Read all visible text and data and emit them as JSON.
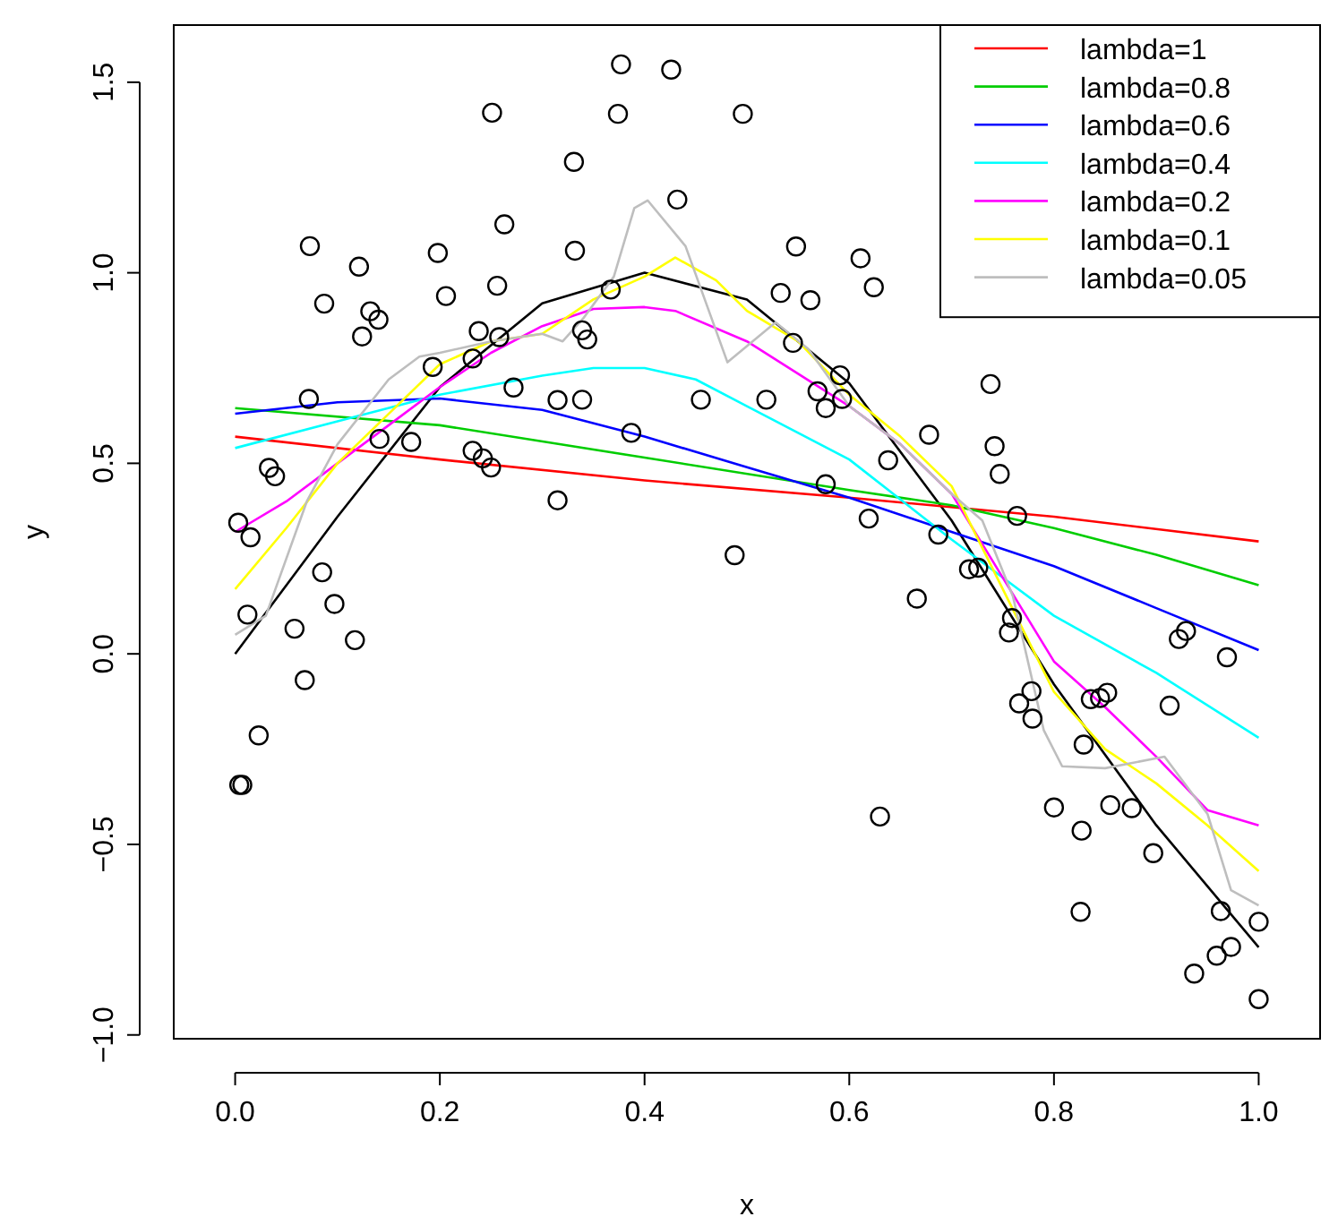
{
  "chart_data": {
    "type": "scatter",
    "xlabel": "x",
    "ylabel": "y",
    "xlim": [
      -0.06,
      1.06
    ],
    "ylim": [
      -1.01,
      1.65
    ],
    "xticks": [
      {
        "value": 0,
        "label": "0.0"
      },
      0.2,
      0.4,
      0.6,
      0.8,
      {
        "value": 1,
        "label": "1.0"
      }
    ],
    "yticks": [
      {
        "value": -1,
        "label": "−1.0"
      },
      {
        "value": -0.5,
        "label": "−0.5"
      },
      {
        "value": 0,
        "label": "0.0"
      },
      0.5,
      {
        "value": 1,
        "label": "1.0"
      },
      1.5
    ],
    "grid": false,
    "legend": "top right",
    "series": [
      {
        "marker": "circle",
        "color": "#000000",
        "x": [
          0.251,
          0.263,
          0.073,
          0.121,
          0.198,
          0.087,
          0.256,
          0.206,
          0.132,
          0.14,
          0.124,
          0.238,
          0.258,
          0.232,
          0.193,
          0.272,
          0.315,
          0.072,
          0.141,
          0.172,
          0.232,
          0.242,
          0.25,
          0.033,
          0.039,
          0.315,
          0.003,
          0.015,
          0.085,
          0.097,
          0.012,
          0.058,
          0.117,
          0.068,
          0.023,
          0.004,
          0.007,
          0.377,
          0.426,
          0.374,
          0.496,
          0.331,
          0.432,
          0.332,
          0.548,
          0.611,
          0.367,
          0.533,
          0.562,
          0.624,
          0.339,
          0.344,
          0.545,
          0.591,
          0.569,
          0.593,
          0.577,
          0.339,
          0.455,
          0.519,
          0.387,
          0.638,
          0.678,
          0.577,
          0.619,
          0.488,
          0.666,
          0.63,
          0.742,
          0.747,
          0.764,
          0.738,
          0.687,
          0.717,
          0.726,
          0.759,
          0.756,
          0.922,
          0.929,
          0.969,
          0.778,
          0.766,
          0.779,
          0.836,
          0.845,
          0.852,
          0.913,
          0.829,
          0.8,
          0.855,
          0.876,
          0.827,
          0.897,
          0.826,
          0.963,
          1.0,
          0.973,
          0.959,
          0.937,
          1.0
        ],
        "values": [
          1.42,
          1.127,
          1.07,
          1.016,
          1.052,
          0.919,
          0.966,
          0.939,
          0.899,
          0.877,
          0.833,
          0.847,
          0.831,
          0.775,
          0.753,
          0.699,
          0.666,
          0.669,
          0.564,
          0.556,
          0.533,
          0.513,
          0.489,
          0.488,
          0.466,
          0.403,
          0.344,
          0.306,
          0.214,
          0.131,
          0.103,
          0.066,
          0.036,
          -0.069,
          -0.214,
          -0.344,
          -0.344,
          1.547,
          1.533,
          1.417,
          1.417,
          1.291,
          1.192,
          1.058,
          1.069,
          1.038,
          0.956,
          0.947,
          0.928,
          0.962,
          0.849,
          0.825,
          0.816,
          0.731,
          0.689,
          0.669,
          0.645,
          0.667,
          0.667,
          0.667,
          0.58,
          0.508,
          0.575,
          0.445,
          0.355,
          0.259,
          0.145,
          -0.427,
          0.545,
          0.472,
          0.362,
          0.708,
          0.313,
          0.222,
          0.226,
          0.094,
          0.056,
          0.039,
          0.06,
          -0.009,
          -0.098,
          -0.13,
          -0.17,
          -0.119,
          -0.116,
          -0.102,
          -0.136,
          -0.238,
          -0.403,
          -0.397,
          -0.405,
          -0.464,
          -0.523,
          -0.677,
          -0.675,
          -0.703,
          -0.769,
          -0.792,
          -0.839,
          -0.906
        ]
      },
      {
        "type": "line",
        "marker": "none",
        "color": "#000000",
        "x": [
          0,
          0.1,
          0.2,
          0.3,
          0.4,
          0.5,
          0.6,
          0.7,
          0.8,
          0.9,
          1.0
        ],
        "values": [
          0,
          0.36,
          0.7,
          0.92,
          1.0,
          0.93,
          0.71,
          0.35,
          -0.08,
          -0.45,
          -0.77
        ]
      },
      {
        "type": "line",
        "marker": "none",
        "name": "lambda=1",
        "color": "#ff0000",
        "x": [
          0,
          0.2,
          0.4,
          0.6,
          0.8,
          1.0
        ],
        "values": [
          0.57,
          0.51,
          0.455,
          0.41,
          0.36,
          0.295
        ]
      },
      {
        "type": "line",
        "marker": "none",
        "name": "lambda=0.8",
        "color": "#00cd00",
        "x": [
          0,
          0.2,
          0.4,
          0.6,
          0.7,
          0.8,
          0.9,
          1.0
        ],
        "values": [
          0.645,
          0.6,
          0.515,
          0.43,
          0.39,
          0.33,
          0.26,
          0.18
        ]
      },
      {
        "type": "line",
        "marker": "none",
        "name": "lambda=0.6",
        "color": "#0000ff",
        "x": [
          0,
          0.1,
          0.2,
          0.3,
          0.4,
          0.5,
          0.6,
          0.7,
          0.8,
          0.9,
          1.0
        ],
        "values": [
          0.63,
          0.66,
          0.67,
          0.64,
          0.57,
          0.49,
          0.41,
          0.32,
          0.23,
          0.12,
          0.01
        ]
      },
      {
        "type": "line",
        "marker": "none",
        "name": "lambda=0.4",
        "color": "#00ffff",
        "x": [
          0,
          0.1,
          0.2,
          0.3,
          0.35,
          0.4,
          0.45,
          0.5,
          0.6,
          0.7,
          0.75,
          0.8,
          0.9,
          1.0
        ],
        "values": [
          0.54,
          0.61,
          0.68,
          0.73,
          0.75,
          0.75,
          0.72,
          0.65,
          0.51,
          0.3,
          0.2,
          0.1,
          -0.05,
          -0.22
        ]
      },
      {
        "type": "line",
        "marker": "none",
        "name": "lambda=0.2",
        "color": "#ff00ff",
        "x": [
          0,
          0.05,
          0.1,
          0.15,
          0.2,
          0.25,
          0.3,
          0.35,
          0.4,
          0.43,
          0.5,
          0.6,
          0.65,
          0.7,
          0.75,
          0.8,
          0.85,
          0.9,
          0.95,
          1.0
        ],
        "values": [
          0.32,
          0.4,
          0.5,
          0.6,
          0.7,
          0.79,
          0.86,
          0.905,
          0.91,
          0.9,
          0.82,
          0.65,
          0.55,
          0.42,
          0.2,
          -0.02,
          -0.14,
          -0.27,
          -0.41,
          -0.45
        ]
      },
      {
        "type": "line",
        "marker": "none",
        "name": "lambda=0.1",
        "color": "#ffff00",
        "x": [
          0,
          0.05,
          0.1,
          0.15,
          0.2,
          0.25,
          0.3,
          0.35,
          0.4,
          0.43,
          0.47,
          0.5,
          0.55,
          0.6,
          0.65,
          0.7,
          0.75,
          0.8,
          0.85,
          0.9,
          0.95,
          1.0
        ],
        "values": [
          0.17,
          0.33,
          0.5,
          0.63,
          0.76,
          0.82,
          0.84,
          0.93,
          0.99,
          1.04,
          0.98,
          0.9,
          0.82,
          0.68,
          0.57,
          0.44,
          0.17,
          -0.1,
          -0.25,
          -0.34,
          -0.45,
          -0.57
        ]
      },
      {
        "type": "line",
        "marker": "none",
        "name": "lambda=0.05",
        "color": "#bebebe",
        "x": [
          0,
          0.03,
          0.07,
          0.1,
          0.15,
          0.18,
          0.2,
          0.25,
          0.3,
          0.32,
          0.34,
          0.37,
          0.39,
          0.403,
          0.44,
          0.481,
          0.528,
          0.56,
          0.6,
          0.65,
          0.7,
          0.73,
          0.76,
          0.79,
          0.808,
          0.85,
          0.908,
          0.95,
          0.973,
          1.0
        ],
        "values": [
          0.05,
          0.1,
          0.4,
          0.55,
          0.72,
          0.78,
          0.79,
          0.82,
          0.84,
          0.82,
          0.88,
          0.99,
          1.17,
          1.19,
          1.07,
          0.765,
          0.87,
          0.8,
          0.65,
          0.55,
          0.42,
          0.35,
          0.15,
          -0.2,
          -0.295,
          -0.3,
          -0.27,
          -0.42,
          -0.62,
          -0.66
        ]
      }
    ]
  }
}
